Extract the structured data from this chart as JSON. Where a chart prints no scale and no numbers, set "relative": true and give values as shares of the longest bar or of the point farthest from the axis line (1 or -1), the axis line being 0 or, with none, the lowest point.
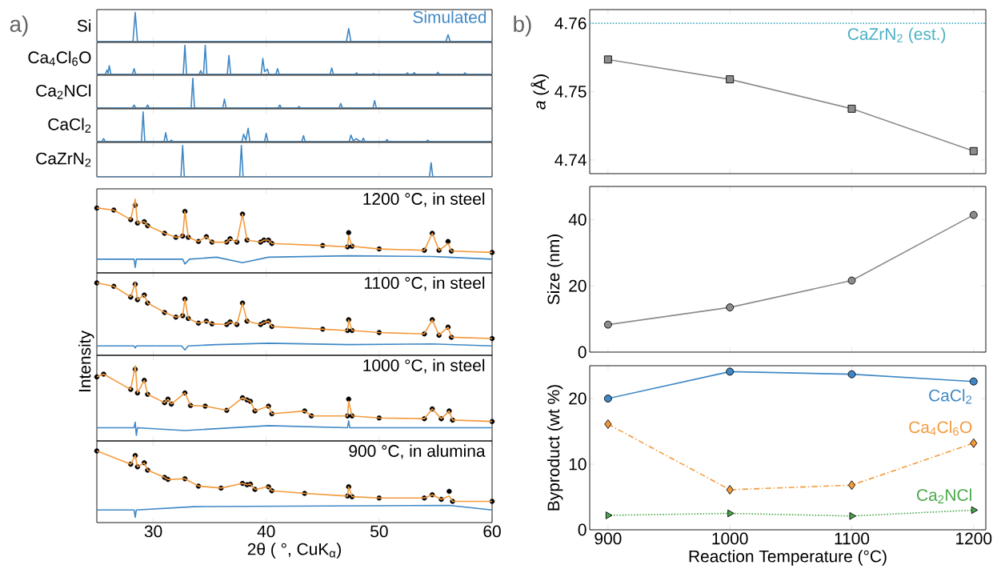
{
  "chart_data": [
    {
      "type": "line",
      "relative": true,
      "xlim": [
        25,
        60
      ],
      "xticks": [
        30,
        40,
        50,
        60
      ],
      "tick_labels": false,
      "ylabel": "Si",
      "annotations": [
        "a)",
        "Simulated"
      ],
      "series": [
        {
          "color": "#3f88c5",
          "x": [
            25,
            28.2,
            28.4,
            28.6,
            47.1,
            47.3,
            47.5,
            55.9,
            56.1,
            56.3,
            60
          ],
          "values": [
            0,
            0,
            1,
            0,
            0,
            0.45,
            0,
            0,
            0.23,
            0,
            0
          ]
        }
      ]
    },
    {
      "type": "line",
      "relative": true,
      "xlim": [
        25,
        60
      ],
      "xticks": [
        30,
        40,
        50,
        60
      ],
      "tick_labels": false,
      "ylabel": "Ca$_{4}$Cl$_{6}$O",
      "series": [
        {
          "color": "#3f88c5",
          "x": [
            25,
            25.75,
            25.9,
            26.0,
            26.1,
            26.25,
            28.15,
            28.3,
            28.45,
            32.65,
            32.8,
            32.95,
            34.05,
            34.2,
            34.35,
            34.45,
            34.6,
            34.75,
            36.55,
            36.7,
            36.85,
            39.55,
            39.7,
            39.85,
            40.1,
            40.25,
            40.85,
            41.0,
            41.15,
            45.65,
            45.8,
            45.95,
            47.85,
            48.0,
            48.15,
            49.35,
            49.5,
            49.65,
            52.35,
            52.5,
            52.65,
            52.95,
            53.1,
            53.25,
            55.05,
            55.2,
            55.35,
            57.45,
            57.6,
            57.75,
            60
          ],
          "values": [
            0,
            0,
            0.15,
            0.05,
            0.3,
            0,
            0,
            0.2,
            0,
            0,
            1,
            0,
            0,
            0.13,
            0,
            0,
            1,
            0,
            0,
            0.65,
            0,
            0,
            0.55,
            0.1,
            0.18,
            0,
            0,
            0.2,
            0,
            0,
            0.22,
            0,
            0,
            0.05,
            0,
            0,
            0.03,
            0,
            0,
            0.05,
            0,
            0,
            0.06,
            0,
            0,
            0.07,
            0,
            0,
            0.05,
            0,
            0
          ]
        }
      ]
    },
    {
      "type": "line",
      "relative": true,
      "xlim": [
        25,
        60
      ],
      "xticks": [
        30,
        40,
        50,
        60
      ],
      "tick_labels": false,
      "ylabel": "Ca$_{2}$NCl",
      "series": [
        {
          "color": "#3f88c5",
          "x": [
            25,
            28.15,
            28.3,
            28.45,
            29.35,
            29.5,
            29.65,
            33.35,
            33.5,
            33.65,
            36.15,
            36.3,
            36.45,
            41.05,
            41.2,
            41.35,
            42.75,
            42.9,
            43.05,
            46.45,
            46.6,
            46.75,
            49.45,
            49.6,
            49.75,
            60
          ],
          "values": [
            0,
            0,
            0.1,
            0,
            0,
            0.1,
            0,
            0,
            1,
            0,
            0,
            0.3,
            0,
            0,
            0.1,
            0,
            0,
            0.05,
            0,
            0,
            0.15,
            0,
            0,
            0.25,
            0,
            0
          ]
        }
      ]
    },
    {
      "type": "line",
      "relative": true,
      "xlim": [
        25,
        60
      ],
      "xticks": [
        30,
        40,
        50,
        60
      ],
      "tick_labels": false,
      "ylabel": "CaCl$_{2}$",
      "series": [
        {
          "color": "#3f88c5",
          "x": [
            25,
            25.45,
            25.6,
            25.75,
            28.95,
            29.1,
            29.25,
            30.95,
            31.1,
            31.25,
            31.45,
            31.6,
            31.75,
            37.85,
            38.0,
            38.2,
            38.4,
            38.55,
            39.85,
            40.0,
            40.15,
            43.15,
            43.3,
            43.45,
            47.35,
            47.5,
            47.7,
            48.0,
            48.2,
            48.45,
            48.6,
            48.75,
            50.55,
            50.7,
            50.85,
            54.15,
            54.3,
            54.45,
            60
          ],
          "values": [
            0,
            0,
            0.1,
            0,
            0,
            1,
            0,
            0,
            0.3,
            0,
            0,
            0.05,
            0,
            0,
            0.25,
            0.05,
            0.45,
            0,
            0,
            0.28,
            0,
            0,
            0.2,
            0,
            0,
            0.22,
            0.03,
            0.1,
            0.03,
            0,
            0.12,
            0,
            0,
            0.07,
            0,
            0,
            0.05,
            0,
            0
          ]
        }
      ]
    },
    {
      "type": "line",
      "relative": true,
      "xlim": [
        25,
        60
      ],
      "xticks": [
        30,
        40,
        50,
        60
      ],
      "tick_labels": false,
      "ylabel": "CaZrN$_{2}$",
      "series": [
        {
          "color": "#3f88c5",
          "x": [
            25,
            32.45,
            32.6,
            32.75,
            37.65,
            37.8,
            37.95,
            54.45,
            54.6,
            54.75,
            60
          ],
          "values": [
            0,
            0,
            1,
            0,
            0,
            1,
            0,
            0,
            0.45,
            0,
            0
          ]
        }
      ]
    },
    {
      "type": "line",
      "relative": true,
      "xlim": [
        25,
        60
      ],
      "xticks": [
        30,
        40,
        50,
        60
      ],
      "tick_labels": false,
      "title": "1200 °C, in steel",
      "series": [
        {
          "type": "scatter",
          "marker": "circle",
          "color": "#000000",
          "x": [
            25,
            26.5,
            28.0,
            28.4,
            28.6,
            29.2,
            29.5,
            31,
            32.0,
            32.6,
            32.8,
            33.1,
            34.0,
            34.7,
            35.2,
            36.5,
            36.8,
            37.4,
            37.9,
            38.3,
            39.5,
            39.8,
            40.2,
            40.5,
            45,
            47.2,
            47.3,
            47.6,
            50,
            54.0,
            54.7,
            55.3,
            56.1,
            56.4,
            60
          ],
          "values": [
            0.87,
            0.84,
            0.7,
            0.91,
            0.65,
            0.67,
            0.61,
            0.5,
            0.44,
            0.46,
            0.82,
            0.44,
            0.38,
            0.45,
            0.37,
            0.37,
            0.42,
            0.37,
            0.78,
            0.4,
            0.37,
            0.4,
            0.4,
            0.35,
            0.32,
            0.3,
            0.51,
            0.31,
            0.27,
            0.25,
            0.5,
            0.25,
            0.38,
            0.24,
            0.22
          ]
        },
        {
          "color": "#f39a3c",
          "x": [
            25,
            26.5,
            28.0,
            28.4,
            28.6,
            29.2,
            29.5,
            31,
            32.0,
            32.6,
            32.8,
            33.1,
            34.0,
            34.7,
            35.2,
            36.5,
            36.8,
            37.4,
            37.9,
            38.3,
            39.5,
            39.8,
            40.2,
            40.5,
            45,
            47.2,
            47.3,
            47.6,
            50,
            54.0,
            54.7,
            55.3,
            56.1,
            56.4,
            60
          ],
          "values": [
            0.87,
            0.84,
            0.7,
            1.0,
            0.65,
            0.67,
            0.61,
            0.5,
            0.44,
            0.46,
            0.82,
            0.44,
            0.38,
            0.45,
            0.37,
            0.37,
            0.42,
            0.37,
            0.78,
            0.4,
            0.37,
            0.4,
            0.4,
            0.35,
            0.32,
            0.3,
            0.46,
            0.31,
            0.27,
            0.25,
            0.5,
            0.25,
            0.35,
            0.24,
            0.22
          ]
        },
        {
          "color": "#3f88c5",
          "x": [
            25,
            28.3,
            28.4,
            28.5,
            32.6,
            32.8,
            33.2,
            35.6,
            37.9,
            40.2,
            47.3,
            54.7,
            56.1,
            60
          ],
          "values": [
            0.12,
            0.12,
            0,
            0.12,
            0.12,
            0.05,
            0.12,
            0.15,
            0.07,
            0.15,
            0.17,
            0.16,
            0.15,
            0.12
          ]
        }
      ]
    },
    {
      "type": "line",
      "relative": true,
      "xlim": [
        25,
        60
      ],
      "xticks": [
        30,
        40,
        50,
        60
      ],
      "tick_labels": false,
      "title": "1100 °C, in steel",
      "ylabel": "Intensity",
      "series": [
        {
          "type": "scatter",
          "marker": "circle",
          "color": "#000000",
          "x": [
            25,
            26.5,
            28.0,
            28.4,
            28.6,
            29.2,
            29.5,
            31,
            32.0,
            32.6,
            32.8,
            33.1,
            34.0,
            34.7,
            35.2,
            36.5,
            36.8,
            37.4,
            37.9,
            38.3,
            39.5,
            39.8,
            40.2,
            40.5,
            45,
            47.2,
            47.3,
            47.6,
            50,
            54.0,
            54.7,
            55.3,
            56.1,
            56.4,
            60
          ],
          "values": [
            1.0,
            0.95,
            0.79,
            0.98,
            0.75,
            0.82,
            0.7,
            0.56,
            0.49,
            0.51,
            0.76,
            0.47,
            0.4,
            0.43,
            0.39,
            0.38,
            0.42,
            0.38,
            0.7,
            0.43,
            0.38,
            0.41,
            0.43,
            0.35,
            0.31,
            0.29,
            0.45,
            0.29,
            0.26,
            0.24,
            0.45,
            0.22,
            0.34,
            0.19,
            0.17
          ]
        },
        {
          "color": "#f39a3c",
          "x": [
            25,
            26.5,
            28.0,
            28.4,
            28.6,
            29.2,
            29.5,
            31,
            32.0,
            32.6,
            32.8,
            33.1,
            34.0,
            34.7,
            35.2,
            36.5,
            36.8,
            37.4,
            37.9,
            38.3,
            39.5,
            39.8,
            40.2,
            40.5,
            45,
            47.2,
            47.3,
            47.6,
            50,
            54.0,
            54.7,
            55.3,
            56.1,
            56.4,
            60
          ],
          "values": [
            1.0,
            0.95,
            0.79,
            1.0,
            0.75,
            0.82,
            0.7,
            0.56,
            0.49,
            0.51,
            0.76,
            0.47,
            0.4,
            0.43,
            0.39,
            0.38,
            0.42,
            0.38,
            0.7,
            0.43,
            0.38,
            0.41,
            0.43,
            0.35,
            0.31,
            0.29,
            0.45,
            0.29,
            0.26,
            0.24,
            0.45,
            0.22,
            0.34,
            0.19,
            0.17
          ]
        },
        {
          "color": "#3f88c5",
          "x": [
            25,
            28.3,
            28.4,
            28.5,
            32.5,
            32.8,
            33.1,
            35.6,
            40.2,
            47.3,
            54.7,
            60
          ],
          "values": [
            0.06,
            0.06,
            0.03,
            0.06,
            0.06,
            0,
            0.06,
            0.08,
            0.1,
            0.08,
            0.09,
            0.06
          ]
        }
      ]
    },
    {
      "type": "line",
      "relative": true,
      "xlim": [
        25,
        60
      ],
      "xticks": [
        30,
        40,
        50,
        60
      ],
      "tick_labels": false,
      "title": "1000 °C, in steel",
      "series": [
        {
          "type": "scatter",
          "marker": "circle",
          "color": "#000000",
          "x": [
            25,
            25.6,
            28.0,
            28.4,
            28.6,
            29.2,
            29.5,
            31,
            31.3,
            31.6,
            32.8,
            33.3,
            34.6,
            36.5,
            37.9,
            38.3,
            38.6,
            39,
            40.2,
            40.5,
            43.4,
            44,
            47.2,
            47.3,
            47.6,
            50,
            54.0,
            54.7,
            55.5,
            56.2,
            56.5,
            60
          ],
          "values": [
            0.84,
            0.88,
            0.66,
            0.95,
            0.61,
            0.79,
            0.59,
            0.47,
            0.52,
            0.45,
            0.61,
            0.43,
            0.42,
            0.36,
            0.54,
            0.51,
            0.49,
            0.35,
            0.42,
            0.31,
            0.35,
            0.28,
            0.28,
            0.52,
            0.28,
            0.25,
            0.24,
            0.38,
            0.24,
            0.35,
            0.22,
            0.2
          ]
        },
        {
          "color": "#f39a3c",
          "x": [
            25,
            25.6,
            28.0,
            28.4,
            28.6,
            29.2,
            29.5,
            31,
            31.3,
            31.6,
            32.8,
            33.3,
            34.6,
            36.5,
            37.9,
            38.3,
            38.6,
            39,
            40.2,
            40.5,
            43.4,
            44,
            47.2,
            47.3,
            47.6,
            50,
            54.0,
            54.7,
            55.5,
            56.2,
            56.5,
            60
          ],
          "values": [
            0.84,
            0.88,
            0.66,
            1.0,
            0.61,
            0.79,
            0.59,
            0.47,
            0.52,
            0.45,
            0.61,
            0.43,
            0.42,
            0.36,
            0.54,
            0.51,
            0.49,
            0.35,
            0.42,
            0.31,
            0.35,
            0.28,
            0.28,
            0.49,
            0.28,
            0.25,
            0.24,
            0.38,
            0.24,
            0.35,
            0.22,
            0.2
          ]
        },
        {
          "color": "#3f88c5",
          "x": [
            25,
            28.3,
            28.4,
            28.5,
            28.6,
            32.8,
            40.2,
            47.2,
            47.3,
            47.4,
            60
          ],
          "values": [
            0.11,
            0.11,
            0.19,
            0,
            0.11,
            0.07,
            0.14,
            0.11,
            0.21,
            0.11,
            0.11
          ]
        }
      ]
    },
    {
      "type": "line",
      "relative": true,
      "xlim": [
        25,
        60
      ],
      "xticks": [
        30,
        40,
        50,
        60
      ],
      "tick_labels": "x",
      "title": "900 °C, in alumina",
      "xlabel": "2θ ( °, CuK$_{α}$)",
      "series": [
        {
          "type": "scatter",
          "marker": "circle",
          "color": "#000000",
          "x": [
            25,
            28.0,
            28.4,
            28.6,
            29.2,
            29.5,
            31,
            31.3,
            32.8,
            34,
            36,
            37.9,
            38.3,
            38.6,
            39,
            40.2,
            40.5,
            43.4,
            47.2,
            47.3,
            47.6,
            50,
            54.0,
            54.7,
            55.5,
            56.2,
            56.5,
            60
          ],
          "values": [
            1.0,
            0.8,
            0.93,
            0.76,
            0.82,
            0.71,
            0.6,
            0.57,
            0.58,
            0.47,
            0.44,
            0.51,
            0.49,
            0.5,
            0.42,
            0.46,
            0.4,
            0.36,
            0.32,
            0.46,
            0.31,
            0.29,
            0.29,
            0.34,
            0.27,
            0.39,
            0.24,
            0.24
          ]
        },
        {
          "color": "#f39a3c",
          "x": [
            25,
            28.0,
            28.4,
            28.6,
            29.2,
            29.5,
            31,
            31.3,
            32.8,
            34,
            36,
            37.9,
            38.3,
            38.6,
            39,
            40.2,
            40.5,
            43.4,
            47.2,
            47.3,
            47.6,
            50,
            54.0,
            54.7,
            55.5,
            56.2,
            56.5,
            60
          ],
          "values": [
            1.0,
            0.8,
            0.93,
            0.76,
            0.82,
            0.71,
            0.6,
            0.57,
            0.58,
            0.47,
            0.44,
            0.51,
            0.49,
            0.5,
            0.42,
            0.46,
            0.4,
            0.36,
            0.32,
            0.46,
            0.31,
            0.29,
            0.29,
            0.34,
            0.27,
            0.32,
            0.24,
            0.24
          ]
        },
        {
          "color": "#3f88c5",
          "x": [
            25,
            28.3,
            28.4,
            28.5,
            33.6,
            56.2,
            60
          ],
          "values": [
            0.11,
            0.11,
            0,
            0.11,
            0.16,
            0.18,
            0.11
          ]
        }
      ]
    },
    {
      "type": "line",
      "x": [
        900,
        1000,
        1100,
        1200
      ],
      "xlim": [
        885,
        1210
      ],
      "xticks": [
        900,
        1000,
        1100,
        1200
      ],
      "ylim": [
        4.738,
        4.762
      ],
      "yticks": [
        4.74,
        4.75,
        4.76
      ],
      "tick_labels": "y",
      "ylabel": "*a* (Å)",
      "marker": "square",
      "annotations": [
        "b)"
      ],
      "ref_lines": [
        {
          "axis": "y",
          "value": 4.76,
          "label": "CaZrN$_{2}$ (est.)",
          "color": "#4bb0c4",
          "line_style": "dotted"
        }
      ],
      "series": [
        {
          "color": "#8c8c8c",
          "values": [
            4.7547,
            4.7518,
            4.7475,
            4.7413
          ]
        }
      ]
    },
    {
      "type": "line",
      "x": [
        900,
        1000,
        1100,
        1200
      ],
      "xlim": [
        885,
        1210
      ],
      "xticks": [
        900,
        1000,
        1100,
        1200
      ],
      "ylim": [
        0,
        50
      ],
      "yticks": [
        0,
        20,
        40
      ],
      "tick_labels": "y",
      "ylabel": "Size (nm)",
      "marker": "circle",
      "series": [
        {
          "color": "#8c8c8c",
          "values": [
            8.3,
            13.5,
            21.6,
            41.4
          ]
        }
      ]
    },
    {
      "type": "line",
      "x": [
        900,
        1000,
        1100,
        1200
      ],
      "xlim": [
        885,
        1210
      ],
      "xticks": [
        900,
        1000,
        1100,
        1200
      ],
      "ylim": [
        0,
        25
      ],
      "yticks": [
        0,
        10,
        20
      ],
      "xlabel": "Reaction Temperature (°C)",
      "ylabel": "Byproduct (wt %)",
      "series": [
        {
          "name": "CaCl$_{2}$",
          "color": "#3f88c5",
          "marker": "circle",
          "line_style": "solid",
          "values": [
            20.0,
            24.1,
            23.7,
            22.6
          ]
        },
        {
          "name": "Ca$_{4}$Cl$_{6}$O",
          "color": "#f39a3c",
          "marker": "diamond",
          "line_style": "dashdot",
          "values": [
            16.1,
            6.1,
            6.8,
            13.2
          ]
        },
        {
          "name": "Ca$_{2}$NCl",
          "color": "#4aa84a",
          "marker": "triangle",
          "line_style": "dotted",
          "values": [
            2.2,
            2.5,
            2.1,
            3.0
          ]
        }
      ]
    }
  ]
}
